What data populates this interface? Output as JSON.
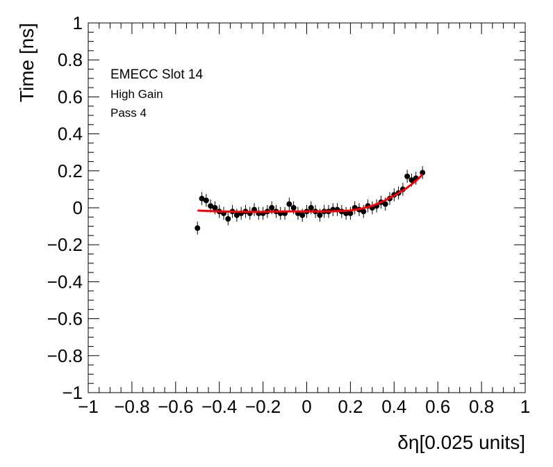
{
  "chart_data": {
    "type": "scatter",
    "xlabel": "δη[0.025 units]",
    "ylabel": "Time [ns]",
    "xlim": [
      -1,
      1
    ],
    "ylim": [
      -1,
      1
    ],
    "x_ticks": [
      "−1",
      "−0.8",
      "−0.6",
      "−0.4",
      "−0.2",
      "0",
      "0.2",
      "0.4",
      "0.6",
      "0.8",
      "1"
    ],
    "y_ticks": [
      "−1",
      "−0.8",
      "−0.6",
      "−0.4",
      "−0.2",
      "0",
      "0.2",
      "0.4",
      "0.6",
      "0.8",
      "1"
    ],
    "annotations": [
      "EMECC Slot 14",
      "High Gain",
      "Pass 4"
    ],
    "grid": false,
    "colors": {
      "points": "#000000",
      "fit": "#ff0000"
    },
    "series": [
      {
        "kind": "points_with_errors",
        "x": [
          -0.5,
          -0.48,
          -0.46,
          -0.44,
          -0.42,
          -0.4,
          -0.38,
          -0.36,
          -0.34,
          -0.32,
          -0.3,
          -0.28,
          -0.26,
          -0.24,
          -0.22,
          -0.2,
          -0.18,
          -0.16,
          -0.14,
          -0.12,
          -0.1,
          -0.08,
          -0.06,
          -0.04,
          -0.02,
          0.0,
          0.02,
          0.04,
          0.06,
          0.08,
          0.1,
          0.12,
          0.14,
          0.16,
          0.18,
          0.2,
          0.22,
          0.24,
          0.26,
          0.28,
          0.3,
          0.32,
          0.34,
          0.36,
          0.38,
          0.4,
          0.42,
          0.44,
          0.46,
          0.48,
          0.5,
          0.53
        ],
        "y": [
          -0.11,
          0.05,
          0.04,
          0.01,
          0.0,
          -0.02,
          -0.03,
          -0.06,
          -0.02,
          -0.04,
          -0.03,
          -0.02,
          -0.03,
          -0.01,
          -0.03,
          -0.03,
          -0.02,
          0.0,
          -0.02,
          -0.03,
          -0.03,
          0.02,
          0.0,
          -0.03,
          -0.04,
          -0.02,
          0.0,
          -0.02,
          -0.04,
          -0.02,
          -0.02,
          -0.01,
          -0.01,
          -0.02,
          -0.03,
          -0.03,
          0.0,
          -0.01,
          -0.02,
          0.01,
          0.0,
          0.01,
          0.03,
          0.02,
          0.05,
          0.07,
          0.08,
          0.1,
          0.17,
          0.15,
          0.16,
          0.19
        ],
        "yerr": 0.035
      },
      {
        "kind": "fit_line",
        "x": [
          -0.5,
          -0.4,
          -0.3,
          -0.2,
          -0.1,
          0.0,
          0.1,
          0.2,
          0.25,
          0.3,
          0.35,
          0.4,
          0.45,
          0.5,
          0.53
        ],
        "y": [
          -0.015,
          -0.02,
          -0.022,
          -0.022,
          -0.02,
          -0.02,
          -0.02,
          -0.015,
          -0.005,
          0.01,
          0.035,
          0.065,
          0.1,
          0.145,
          0.18
        ]
      }
    ]
  }
}
